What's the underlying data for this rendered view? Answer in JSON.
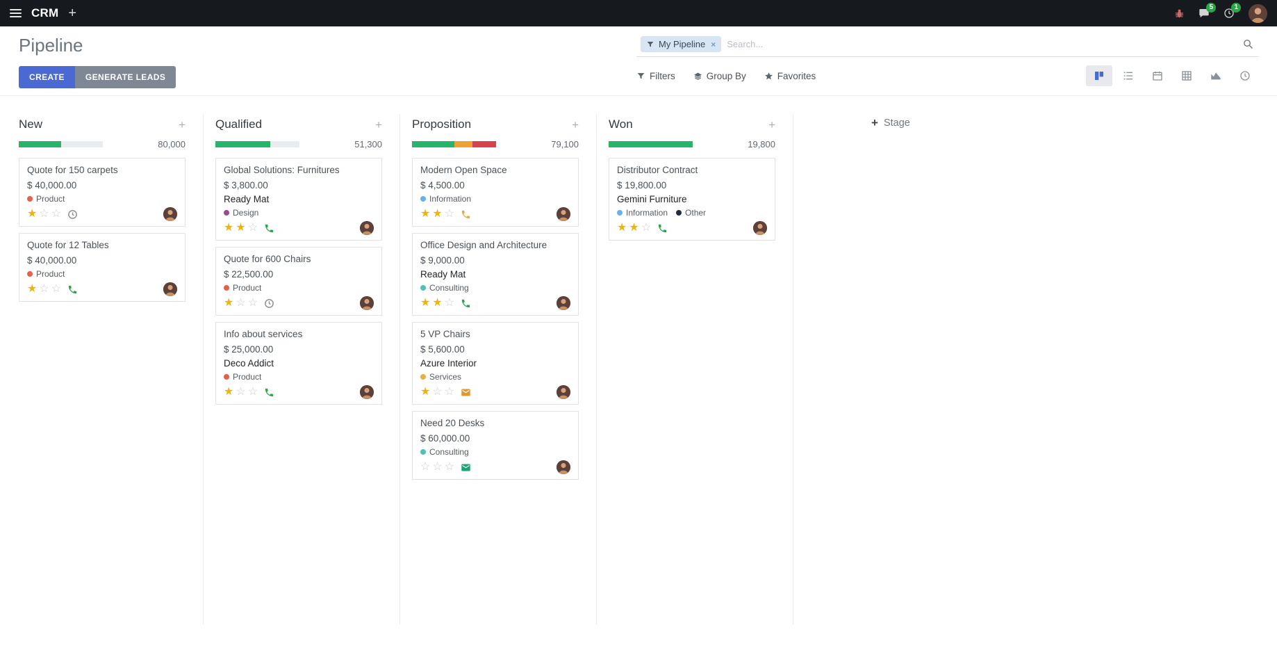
{
  "topbar": {
    "app_name": "CRM",
    "messages_badge": "5",
    "activities_badge": "1"
  },
  "control_panel": {
    "title": "Pipeline",
    "create_label": "CREATE",
    "generate_leads_label": "GENERATE LEADS",
    "search": {
      "facet_label": "My Pipeline",
      "facet_close": "×",
      "placeholder": "Search..."
    },
    "filter_buttons": {
      "filters": "Filters",
      "group_by": "Group By",
      "favorites": "Favorites"
    },
    "view_switcher": [
      "kanban",
      "list",
      "calendar",
      "pivot",
      "graph",
      "activity"
    ],
    "active_view": "kanban"
  },
  "kanban": {
    "add_stage_label": "Stage",
    "add_stage_plus": "+",
    "column_add_label": "+",
    "columns": [
      {
        "name": "New",
        "total": "80,000",
        "progress": [
          {
            "color": "#26b56a",
            "pct": 50
          }
        ],
        "cards": [
          {
            "title": "Quote for 150 carpets",
            "amount": "$ 40,000.00",
            "partner": "",
            "tags": [
              {
                "label": "Product",
                "color": "#e7604a"
              }
            ],
            "stars": 1,
            "activity": {
              "type": "clock",
              "color": "#8f8f8f"
            }
          },
          {
            "title": "Quote for 12 Tables",
            "amount": "$ 40,000.00",
            "partner": "",
            "tags": [
              {
                "label": "Product",
                "color": "#e7604a"
              }
            ],
            "stars": 1,
            "activity": {
              "type": "phone",
              "color": "#28a745"
            }
          }
        ]
      },
      {
        "name": "Qualified",
        "total": "51,300",
        "progress": [
          {
            "color": "#26b56a",
            "pct": 65
          }
        ],
        "cards": [
          {
            "title": "Global Solutions: Furnitures",
            "amount": "$ 3,800.00",
            "partner": "Ready Mat",
            "tags": [
              {
                "label": "Design",
                "color": "#9a4b8f"
              }
            ],
            "stars": 2,
            "activity": {
              "type": "phone",
              "color": "#28a745"
            }
          },
          {
            "title": "Quote for 600 Chairs",
            "amount": "$ 22,500.00",
            "partner": "",
            "tags": [
              {
                "label": "Product",
                "color": "#e7604a"
              }
            ],
            "stars": 1,
            "activity": {
              "type": "clock",
              "color": "#8f8f8f"
            }
          },
          {
            "title": "Info about services",
            "amount": "$ 25,000.00",
            "partner": "Deco Addict",
            "tags": [
              {
                "label": "Product",
                "color": "#e7604a"
              }
            ],
            "stars": 1,
            "activity": {
              "type": "phone",
              "color": "#28a745"
            }
          }
        ]
      },
      {
        "name": "Proposition",
        "total": "79,100",
        "progress": [
          {
            "color": "#26b56a",
            "pct": 50
          },
          {
            "color": "#efa231",
            "pct": 22
          },
          {
            "color": "#d8424d",
            "pct": 28
          }
        ],
        "cards": [
          {
            "title": "Modern Open Space",
            "amount": "$ 4,500.00",
            "partner": "",
            "tags": [
              {
                "label": "Information",
                "color": "#65b2e8"
              }
            ],
            "stars": 2,
            "activity": {
              "type": "phone",
              "color": "#eca738"
            }
          },
          {
            "title": "Office Design and Architecture",
            "amount": "$ 9,000.00",
            "partner": "Ready Mat",
            "tags": [
              {
                "label": "Consulting",
                "color": "#4ec3b4"
              }
            ],
            "stars": 2,
            "activity": {
              "type": "phone",
              "color": "#28a745"
            }
          },
          {
            "title": "5 VP Chairs",
            "amount": "$ 5,600.00",
            "partner": "Azure Interior",
            "tags": [
              {
                "label": "Services",
                "color": "#e9b03c"
              }
            ],
            "stars": 1,
            "activity": {
              "type": "envelope",
              "color": "#dd9933"
            }
          },
          {
            "title": "Need 20 Desks",
            "amount": "$ 60,000.00",
            "partner": "",
            "tags": [
              {
                "label": "Consulting",
                "color": "#4ec3b4"
              }
            ],
            "stars": 0,
            "activity": {
              "type": "envelope",
              "color": "#1aa37a"
            }
          }
        ]
      },
      {
        "name": "Won",
        "total": "19,800",
        "progress": [
          {
            "color": "#26b56a",
            "pct": 100
          }
        ],
        "cards": [
          {
            "title": "Distributor Contract",
            "amount": "$ 19,800.00",
            "partner": "Gemini Furniture",
            "tags": [
              {
                "label": "Information",
                "color": "#65b2e8"
              },
              {
                "label": "Other",
                "color": "#1f2d3d"
              }
            ],
            "stars": 2,
            "activity": {
              "type": "phone",
              "color": "#28a745"
            }
          }
        ]
      }
    ]
  }
}
